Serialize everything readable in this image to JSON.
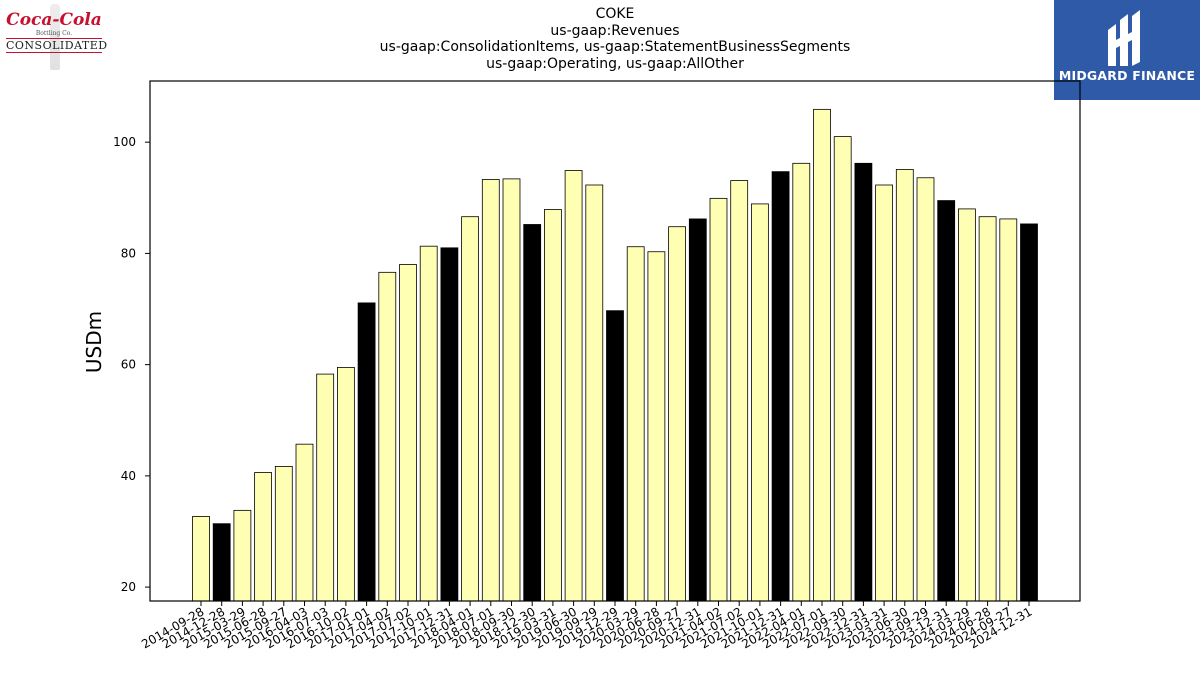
{
  "logos": {
    "left": {
      "brand": "Coca-Cola",
      "sub": "Bottling Co.",
      "main": "CONSOLIDATED"
    },
    "right": {
      "name": "MIDGARD FINANCE"
    }
  },
  "colors": {
    "bar_default": "#ffffb3",
    "bar_highlight": "#000000",
    "logo_right_bg": "#2f5aa8",
    "logo_left_red": "#c8102e"
  },
  "chart_data": {
    "type": "bar",
    "title": "COKE",
    "subtitle": [
      "us-gaap:Revenues",
      "us-gaap:ConsolidationItems, us-gaap:StatementBusinessSegments",
      "us-gaap:Operating, us-gaap:AllOther"
    ],
    "xlabel": "",
    "ylabel": "USDm",
    "ylim": [
      17.5,
      111
    ],
    "yticks": [
      20,
      40,
      60,
      80,
      100
    ],
    "grid": false,
    "categories": [
      "2014-09-28",
      "2014-12-28",
      "2015-03-29",
      "2015-06-28",
      "2015-09-27",
      "2016-04-03",
      "2016-07-03",
      "2016-10-02",
      "2017-01-01",
      "2017-04-02",
      "2017-07-02",
      "2017-10-01",
      "2017-12-31",
      "2018-04-01",
      "2018-07-01",
      "2018-09-30",
      "2018-12-30",
      "2019-03-31",
      "2019-06-30",
      "2019-09-29",
      "2019-12-29",
      "2020-03-29",
      "2020-06-28",
      "2020-09-27",
      "2020-12-31",
      "2021-04-02",
      "2021-07-02",
      "2021-10-01",
      "2021-12-31",
      "2022-04-01",
      "2022-07-01",
      "2022-09-30",
      "2022-12-31",
      "2023-03-31",
      "2023-06-30",
      "2023-09-29",
      "2023-12-31",
      "2024-03-29",
      "2024-06-28",
      "2024-09-27",
      "2024-12-31"
    ],
    "values": [
      32.7,
      31.4,
      33.8,
      40.6,
      41.7,
      45.7,
      58.3,
      59.5,
      71.1,
      76.6,
      78.0,
      81.3,
      81.0,
      86.6,
      93.3,
      93.4,
      85.2,
      87.9,
      94.9,
      92.3,
      69.7,
      81.2,
      80.3,
      84.8,
      86.2,
      89.9,
      93.1,
      88.9,
      94.7,
      96.2,
      105.9,
      101.0,
      96.2,
      92.3,
      95.1,
      93.6,
      89.5,
      88.0,
      86.6,
      86.2,
      85.3
    ],
    "highlighted": [
      false,
      true,
      false,
      false,
      false,
      false,
      false,
      false,
      true,
      false,
      false,
      false,
      true,
      false,
      false,
      false,
      true,
      false,
      false,
      false,
      true,
      false,
      false,
      false,
      true,
      false,
      false,
      false,
      true,
      false,
      false,
      false,
      true,
      false,
      false,
      false,
      true,
      false,
      false,
      false,
      true
    ]
  }
}
